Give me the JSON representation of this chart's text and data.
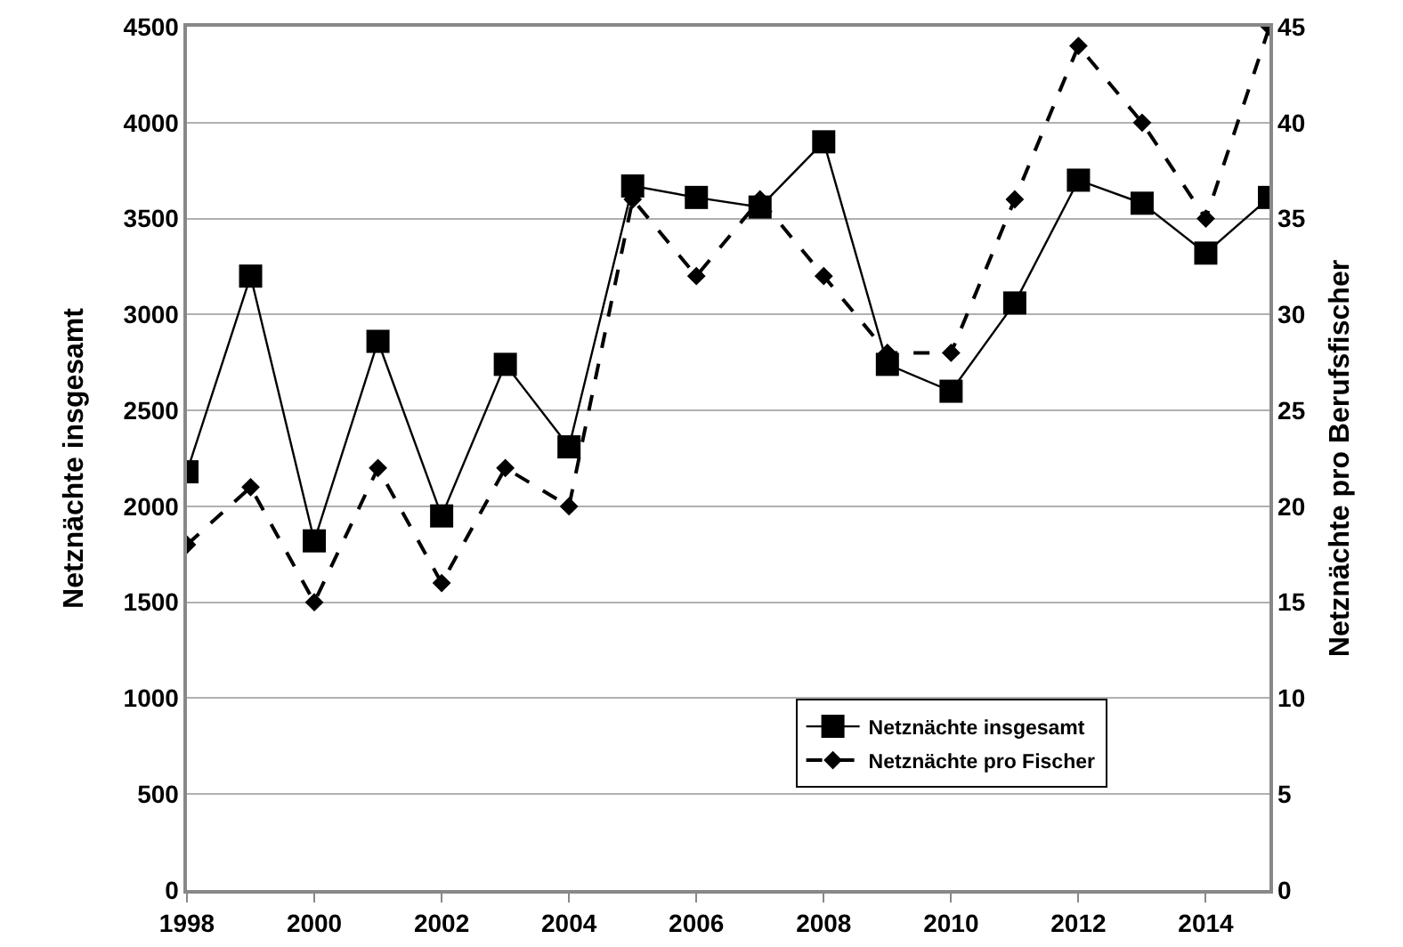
{
  "chart_data": {
    "type": "line",
    "xlabel": null,
    "ylabel": "Netznächte insgesamt",
    "y2label": "Netznächte pro Berufsfischer",
    "x": [
      1998,
      1999,
      2000,
      2001,
      2002,
      2003,
      2004,
      2005,
      2006,
      2007,
      2008,
      2009,
      2010,
      2011,
      2012,
      2013,
      2014,
      2015
    ],
    "series": [
      {
        "name": "Netznächte insgesamt",
        "color": "#000000",
        "marker": "square",
        "line_style": "solid",
        "values": [
          2180,
          3200,
          1820,
          2860,
          1950,
          2740,
          2310,
          3670,
          3610,
          3560,
          3900,
          2740,
          2600,
          3060,
          3700,
          3580,
          3320,
          3610
        ]
      },
      {
        "name": "Netznächte pro Fischer",
        "color": "#000000",
        "marker": "diamond",
        "line_style": "dashed",
        "axis": "y2",
        "values": [
          18,
          21,
          15,
          22,
          16,
          22,
          20,
          36,
          32,
          36,
          32,
          28,
          28,
          36,
          44,
          40,
          35,
          45
        ]
      }
    ],
    "xlim": [
      1998,
      2015
    ],
    "xticks": [
      1998,
      2000,
      2002,
      2004,
      2006,
      2008,
      2010,
      2012,
      2014
    ],
    "ylim": [
      0,
      4500
    ],
    "yticks": [
      0,
      500,
      1000,
      1500,
      2000,
      2500,
      3000,
      3500,
      4000,
      4500
    ],
    "y2lim": [
      0,
      45
    ],
    "y2ticks": [
      0,
      5,
      10,
      15,
      20,
      25,
      30,
      35,
      40,
      45
    ],
    "grid": "y",
    "legend": "bottom right"
  }
}
